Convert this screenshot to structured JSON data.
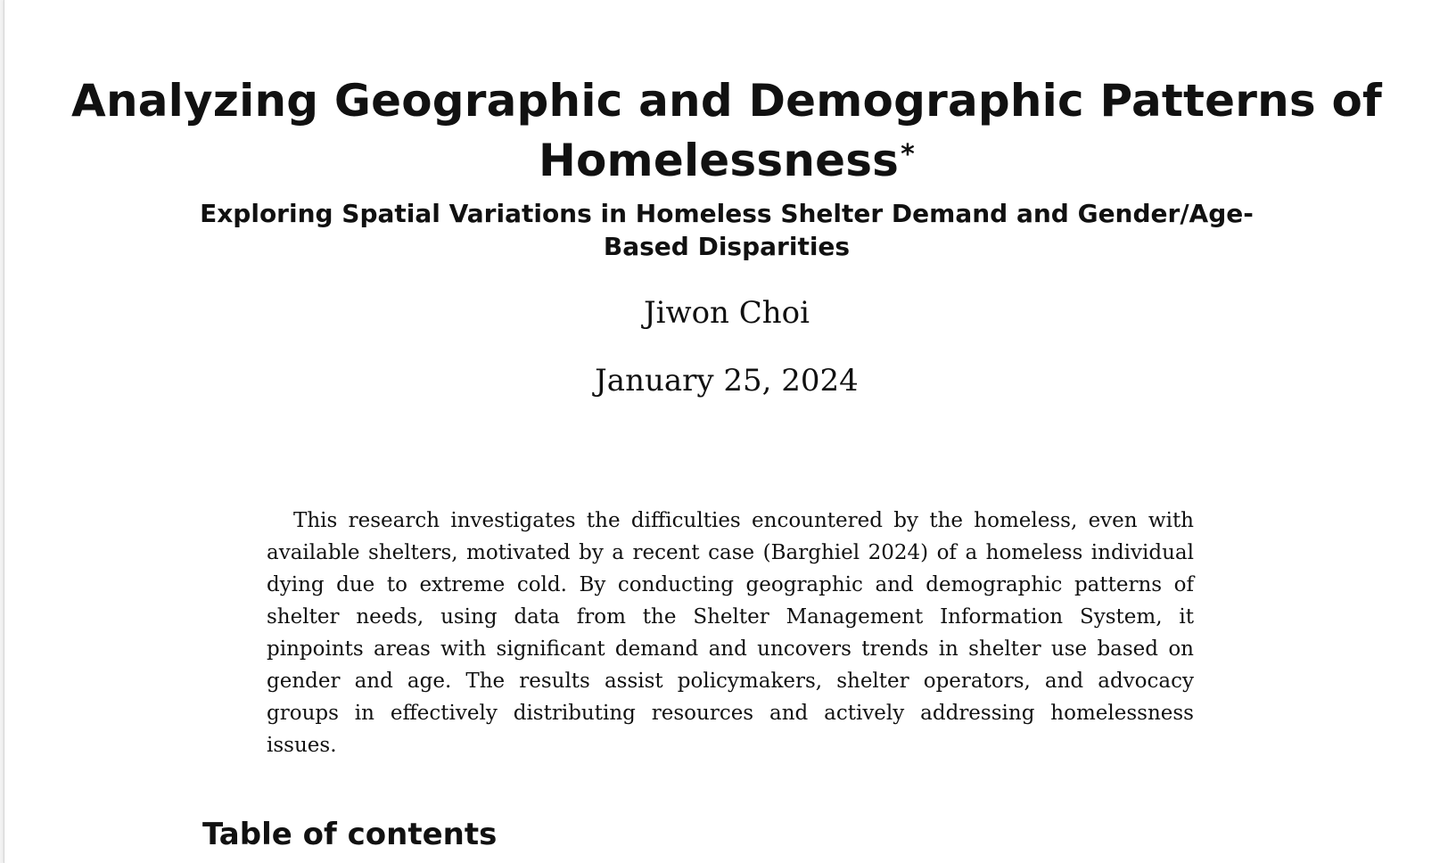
{
  "document": {
    "title": "Analyzing Geographic and Demographic Patterns of Homelessness",
    "title_footnote_mark": "*",
    "subtitle": "Exploring Spatial Variations in Homeless Shelter Demand and Gender/Age-Based Disparities",
    "author": "Jiwon Choi",
    "date": "January 25, 2024",
    "abstract": "This research investigates the difficulties encountered by the homeless, even with available shelters, motivated by a recent case (Barghiel 2024) of a homeless individual dying due to extreme cold. By conducting geographic and demographic patterns of shelter needs, using data from the Shelter Management Information System, it pinpoints areas with significant demand and uncovers trends in shelter use based on gender and age. The results assist policymakers, shelter operators, and advocacy groups in effectively distributing resources and actively addressing homelessness issues.",
    "toc_heading": "Table of contents"
  }
}
